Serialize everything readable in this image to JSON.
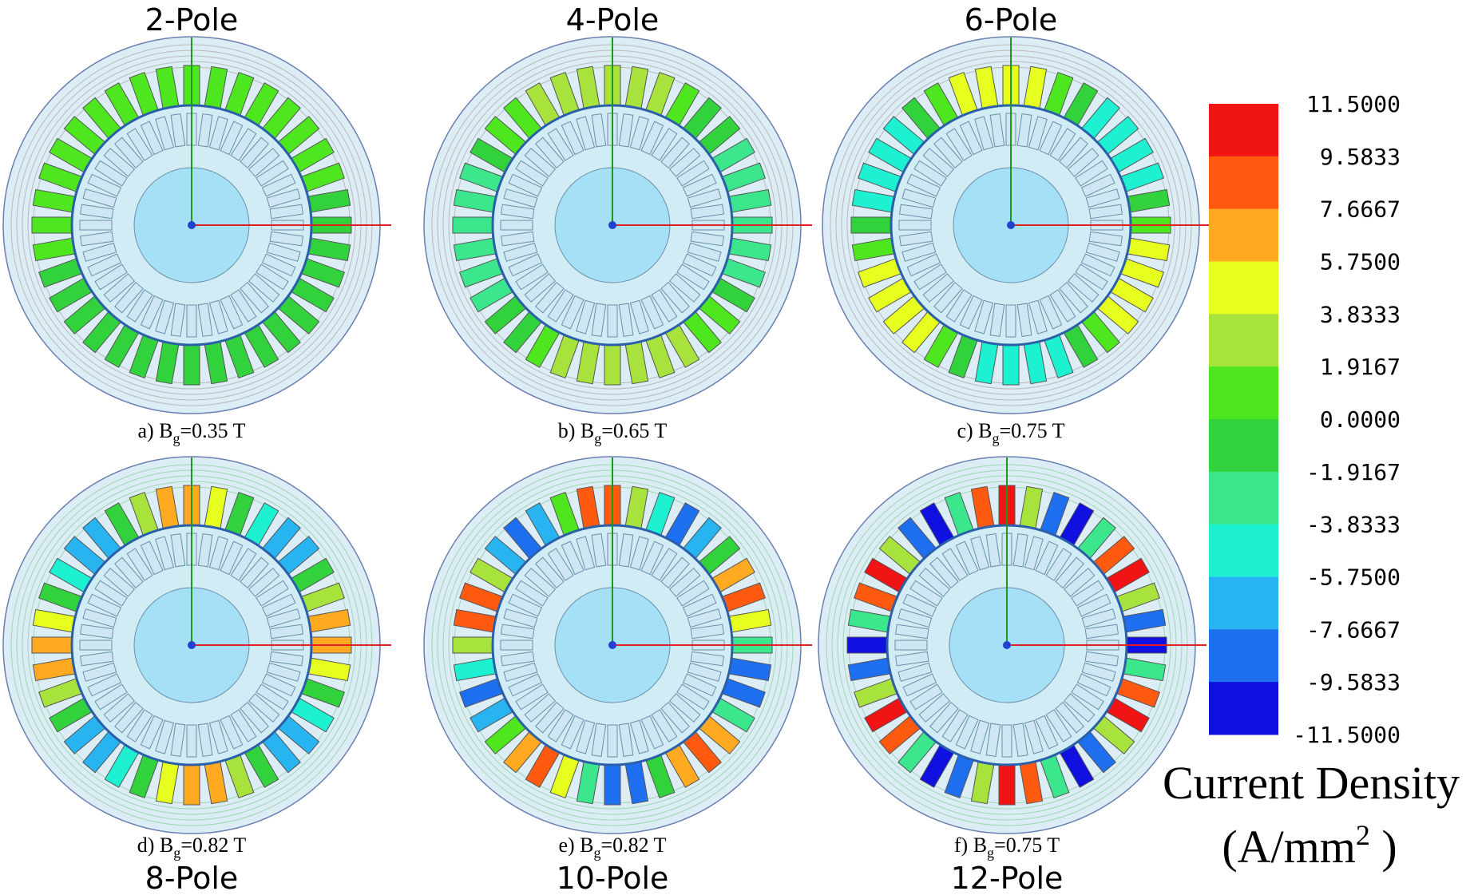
{
  "panels": [
    {
      "title": "2-Pole",
      "caption": {
        "prefix": "a) B",
        "subscript": "g",
        "suffix": "=0.35 T"
      }
    },
    {
      "title": "4-Pole",
      "caption": {
        "prefix": "b) B",
        "subscript": "g",
        "suffix": "=0.65 T"
      }
    },
    {
      "title": "6-Pole",
      "caption": {
        "prefix": "c) B",
        "subscript": "g",
        "suffix": "=0.75 T"
      }
    },
    {
      "title": "8-Pole",
      "caption": {
        "prefix": "d) B",
        "subscript": "g",
        "suffix": "=0.82 T"
      }
    },
    {
      "title": "10-Pole",
      "caption": {
        "prefix": "e) B",
        "subscript": "g",
        "suffix": "=0.82 T"
      }
    },
    {
      "title": "12-Pole",
      "caption": {
        "prefix": "f) B",
        "subscript": "g",
        "suffix": "=0.75 T"
      }
    }
  ],
  "colorbar": {
    "labels": [
      "11.5000",
      "9.5833",
      "7.6667",
      "5.7500",
      "3.8333",
      "1.9167",
      "0.0000",
      "-1.9167",
      "-3.8333",
      "-5.7500",
      "-7.6667",
      "-9.5833",
      "-11.5000"
    ],
    "colors": [
      "#f01414",
      "#ff5a10",
      "#ffaa20",
      "#e6ff1e",
      "#a8e23c",
      "#4ee61e",
      "#32d23c",
      "#3ce68c",
      "#1ef0d2",
      "#28b4f0",
      "#1e6ef0",
      "#1010e0"
    ]
  },
  "colorbar_title": "Current Density",
  "unit": {
    "prefix": "(A/mm",
    "superscript": "2",
    "suffix": " )"
  }
}
